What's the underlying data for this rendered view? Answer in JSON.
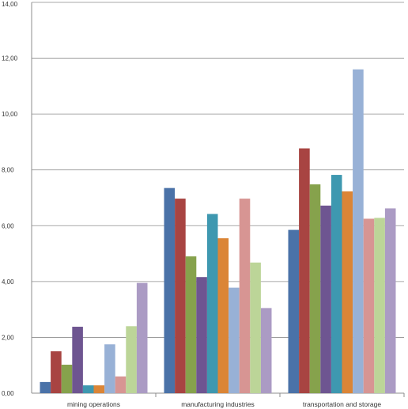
{
  "chart_data": {
    "type": "bar",
    "categories": [
      "mining operations",
      "manufacturing industries",
      "transportation and storage"
    ],
    "ylim": [
      0,
      14
    ],
    "y_ticks": [
      "0,00",
      "2,00",
      "4,00",
      "6,00",
      "8,00",
      "10,00",
      "12,00",
      "14,00"
    ],
    "grid": true,
    "legend": "none",
    "series": [
      {
        "color": "#4a72a8",
        "values": [
          0.4,
          7.35,
          5.85
        ]
      },
      {
        "color": "#a84442",
        "values": [
          1.5,
          6.97,
          8.77
        ]
      },
      {
        "color": "#86a24c",
        "values": [
          1.02,
          4.9,
          7.48
        ]
      },
      {
        "color": "#6e5591",
        "values": [
          2.38,
          4.16,
          6.72
        ]
      },
      {
        "color": "#3e98b0",
        "values": [
          0.28,
          6.42,
          7.82
        ]
      },
      {
        "color": "#db8536",
        "values": [
          0.28,
          5.55,
          7.23
        ]
      },
      {
        "color": "#98b1d6",
        "values": [
          1.75,
          3.78,
          11.6
        ]
      },
      {
        "color": "#d79593",
        "values": [
          0.6,
          6.97,
          6.25
        ]
      },
      {
        "color": "#bcd598",
        "values": [
          2.4,
          4.68,
          6.28
        ]
      },
      {
        "color": "#ab9bc4",
        "values": [
          3.95,
          3.05,
          6.62
        ]
      }
    ]
  }
}
